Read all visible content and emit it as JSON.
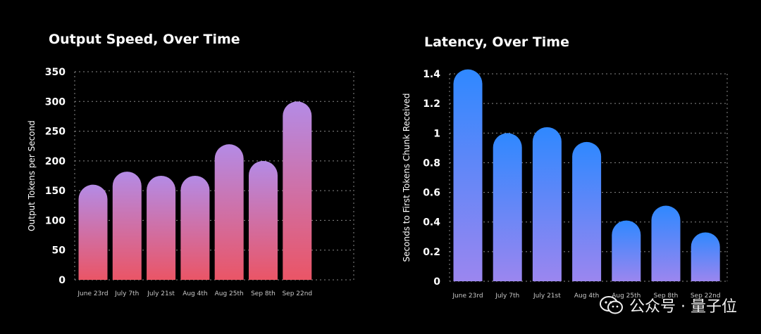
{
  "colors": {
    "background": "#000000",
    "left_bar_top": "#b48be6",
    "left_bar_bottom": "#ea5566",
    "right_bar_top": "#2f88ff",
    "right_bar_bottom": "#9b86ef",
    "grid": "#8a8a8a",
    "text": "#ffffff",
    "tick_text": "#c8c8c8"
  },
  "chart_data": [
    {
      "type": "bar",
      "title": "Output Speed, Over Time",
      "xlabel": "",
      "ylabel": "Output Tokens per Second",
      "categories": [
        "June 23rd",
        "July 7th",
        "July 21st",
        "Aug 4th",
        "Aug 25th",
        "Sep 8th",
        "Sep 22nd"
      ],
      "values": [
        160,
        182,
        175,
        175,
        228,
        200,
        300
      ],
      "ylim": [
        0,
        350
      ],
      "yticks": [
        0,
        50,
        100,
        150,
        200,
        250,
        300,
        350
      ],
      "ytick_labels": [
        "0",
        "50",
        "100",
        "150",
        "200",
        "250",
        "300",
        "350"
      ],
      "grid": true,
      "legend": "none"
    },
    {
      "type": "bar",
      "title": "Latency, Over Time",
      "xlabel": "",
      "ylabel": "Seconds to First Tokens Chunk Received",
      "categories": [
        "June 23rd",
        "July 7th",
        "July 21st",
        "Aug 4th",
        "Aug 25th",
        "Sep 8th",
        "Sep 22nd"
      ],
      "values": [
        1.43,
        1.0,
        1.04,
        0.94,
        0.41,
        0.51,
        0.33
      ],
      "ylim": [
        0,
        1.4
      ],
      "yticks": [
        0,
        0.2,
        0.4,
        0.6,
        0.8,
        1.0,
        1.2,
        1.4
      ],
      "ytick_labels": [
        "0",
        "0.2",
        "0.4",
        "0.6",
        "0.8",
        "1",
        "1.2",
        "1.4"
      ],
      "grid": true,
      "legend": "none"
    }
  ],
  "watermark": {
    "text": "公众号 · 量子位",
    "icon": "wechat-icon"
  }
}
